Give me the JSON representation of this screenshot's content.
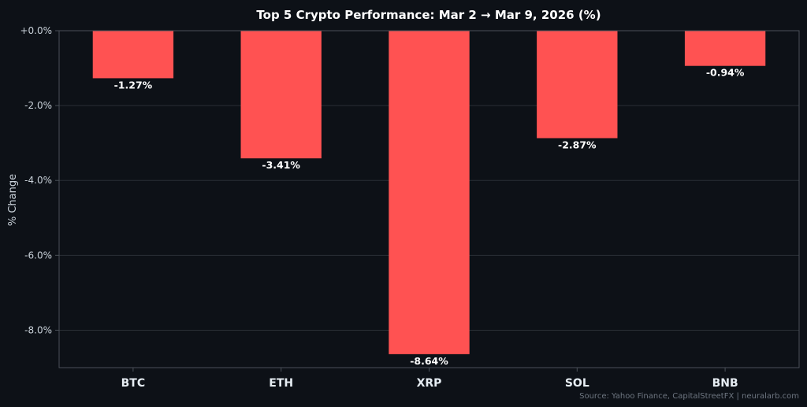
{
  "chart_data": {
    "type": "bar",
    "title": "Top 5 Crypto Performance: Mar 2 → Mar 9, 2026 (%)",
    "xlabel": "",
    "ylabel": "% Change",
    "categories": [
      "BTC",
      "ETH",
      "XRP",
      "SOL",
      "BNB"
    ],
    "values": [
      -1.27,
      -3.41,
      -8.64,
      -2.87,
      -0.94
    ],
    "data_labels": [
      "-1.27%",
      "-3.41%",
      "-8.64%",
      "-2.87%",
      "-0.94%"
    ],
    "ylim": [
      -9.0,
      0.0
    ],
    "yticks": [
      0,
      -2,
      -4,
      -6,
      -8
    ],
    "ytick_labels": [
      "+0.0%",
      "-2.0%",
      "-4.0%",
      "-6.0%",
      "-8.0%"
    ],
    "grid": true,
    "legend": "none",
    "source": "Source: Yahoo Finance, CapitalStreetFX | neuralarb.com",
    "colors": {
      "background": "#0d1117",
      "bar": "#ff5252",
      "grid": "#2a2f36",
      "axis": "#4a5058",
      "text": "#ffffff"
    }
  }
}
